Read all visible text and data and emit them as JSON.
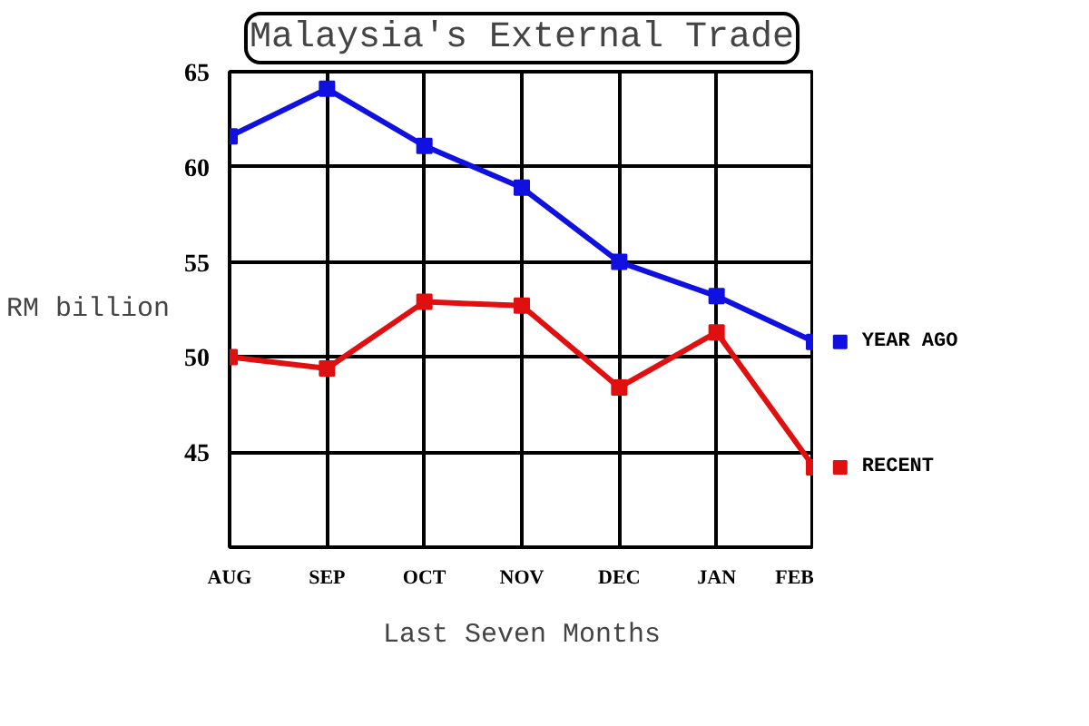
{
  "chart_data": {
    "type": "line",
    "title": "Malaysia's External Trade",
    "xlabel": "Last Seven Months",
    "ylabel": "RM billion",
    "categories": [
      "AUG",
      "SEP",
      "OCT",
      "NOV",
      "DEC",
      "JAN",
      "FEB"
    ],
    "series": [
      {
        "name": "YEAR AGO",
        "color": "#1010e0",
        "values": [
          61.6,
          64.1,
          61.1,
          58.9,
          55.0,
          53.2,
          50.8
        ]
      },
      {
        "name": "RECENT",
        "color": "#e01010",
        "values": [
          50.0,
          49.4,
          52.9,
          52.7,
          48.4,
          51.3,
          44.2
        ]
      }
    ],
    "ylim": [
      40,
      65
    ],
    "yticks": [
      45,
      50,
      55,
      60,
      65
    ],
    "grid": true,
    "legend": "right",
    "marker": "square",
    "line_style": "solid"
  }
}
